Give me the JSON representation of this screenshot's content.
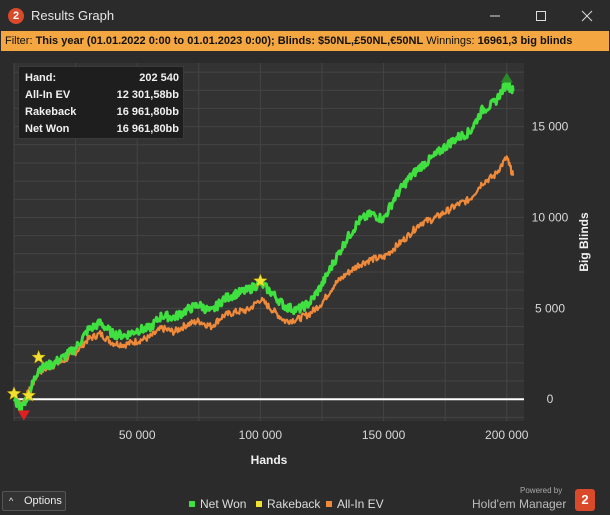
{
  "window": {
    "title": "Results Graph",
    "app_icon_text": "2"
  },
  "filter": {
    "prefix": "Filter: ",
    "bold1": "This year (01.01.2022 0:00 to 01.01.2023 0:00); Blinds: $50NL,£50NL,€50NL",
    "mid": " Winnings: ",
    "bold2": "16961,3 big blinds"
  },
  "info": {
    "rows": [
      {
        "label": "Hand:",
        "value": "202 540"
      },
      {
        "label": "All-In EV",
        "value": "12 301,58bb"
      },
      {
        "label": "Rakeback",
        "value": "16 961,80bb"
      },
      {
        "label": "Net Won",
        "value": "16 961,80bb"
      }
    ]
  },
  "legend": {
    "items": [
      "Net Won",
      "Rakeback",
      "All-In EV"
    ]
  },
  "options_label": "Options",
  "powered_by": "Powered by",
  "brand_name": "Hold'em Manager",
  "brand_icon_text": "2",
  "colors": {
    "net_won": "#40e040",
    "rakeback": "#f0e030",
    "all_in_ev": "#ee8a3a",
    "filter_bg": "#f4a640",
    "zero_line": "#ffffff"
  },
  "chart_data": {
    "type": "line",
    "xlabel": "Hands",
    "ylabel": "Big Blinds",
    "x_ticks": [
      50000,
      100000,
      150000,
      200000
    ],
    "x_tick_labels": [
      "50 000",
      "100 000",
      "150 000",
      "200 000"
    ],
    "y_ticks": [
      0,
      5000,
      10000,
      15000
    ],
    "y_tick_labels": [
      "0",
      "5 000",
      "10 000",
      "15 000"
    ],
    "xlim": [
      0,
      207000
    ],
    "ylim": [
      -1200,
      18500
    ],
    "grid": true,
    "legend_position": "bottom",
    "series": [
      {
        "name": "Net Won",
        "x": [
          0,
          3000,
          6000,
          10000,
          15000,
          20000,
          25000,
          30000,
          35000,
          40000,
          45000,
          50000,
          55000,
          60000,
          65000,
          70000,
          75000,
          80000,
          85000,
          90000,
          95000,
          100000,
          105000,
          110000,
          115000,
          120000,
          125000,
          130000,
          135000,
          140000,
          145000,
          150000,
          155000,
          160000,
          165000,
          170000,
          175000,
          180000,
          185000,
          190000,
          195000,
          200000,
          202540
        ],
        "y": [
          0,
          -500,
          300,
          1700,
          1900,
          2300,
          2800,
          3800,
          4200,
          3600,
          3500,
          3800,
          3900,
          4600,
          4500,
          4900,
          5200,
          4800,
          5500,
          5800,
          6000,
          6400,
          5800,
          5100,
          4900,
          5300,
          6300,
          7600,
          8800,
          9800,
          10200,
          9900,
          11200,
          12100,
          12800,
          13300,
          13900,
          14400,
          14700,
          15900,
          16300,
          17400,
          16960
        ]
      },
      {
        "name": "All-In EV",
        "x": [
          0,
          3000,
          6000,
          10000,
          15000,
          20000,
          25000,
          30000,
          35000,
          40000,
          45000,
          50000,
          55000,
          60000,
          65000,
          70000,
          75000,
          80000,
          85000,
          90000,
          95000,
          100000,
          105000,
          110000,
          115000,
          120000,
          125000,
          130000,
          135000,
          140000,
          145000,
          150000,
          155000,
          160000,
          165000,
          170000,
          175000,
          180000,
          185000,
          190000,
          195000,
          200000,
          202540
        ],
        "y": [
          0,
          -300,
          400,
          1500,
          1800,
          2100,
          2600,
          3300,
          3600,
          3100,
          3000,
          3200,
          3400,
          3900,
          3700,
          4100,
          4300,
          4000,
          4600,
          4800,
          4900,
          5500,
          4900,
          4300,
          4400,
          4700,
          5300,
          6300,
          6900,
          7400,
          7700,
          7800,
          8400,
          9000,
          9700,
          9900,
          10300,
          10700,
          11000,
          11900,
          12300,
          13300,
          12300
        ]
      }
    ],
    "markers": [
      {
        "kind": "star",
        "x": 0,
        "y": 300,
        "color": "#f0e030"
      },
      {
        "kind": "star",
        "x": 6000,
        "y": 200,
        "color": "#f0e030"
      },
      {
        "kind": "star",
        "x": 10000,
        "y": 2300,
        "color": "#f0e030"
      },
      {
        "kind": "star",
        "x": 100000,
        "y": 6500,
        "color": "#f0e030"
      },
      {
        "kind": "down-triangle",
        "x": 4000,
        "y": -900,
        "color": "#e02020"
      },
      {
        "kind": "up-triangle",
        "x": 200000,
        "y": 17700,
        "color": "#2a8a2a"
      }
    ]
  }
}
